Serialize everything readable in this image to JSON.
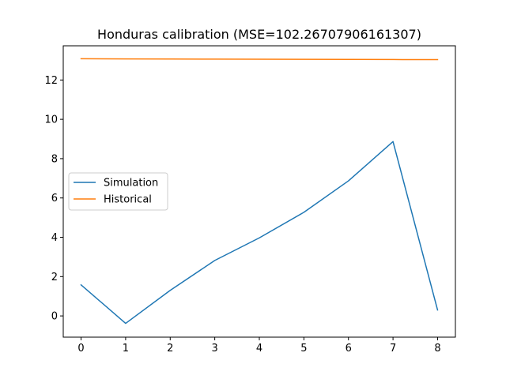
{
  "chart_data": {
    "type": "line",
    "title": "Honduras calibration (MSE=102.26707906161307)",
    "xlabel": "",
    "ylabel": "",
    "x": [
      0,
      1,
      2,
      3,
      4,
      5,
      6,
      7,
      8
    ],
    "xticks": [
      "0",
      "1",
      "2",
      "3",
      "4",
      "5",
      "6",
      "7",
      "8"
    ],
    "yticks": [
      "0",
      "2",
      "4",
      "6",
      "8",
      "10",
      "12"
    ],
    "xlim": [
      -0.4,
      8.4
    ],
    "ylim": [
      -1.08,
      13.74
    ],
    "grid": false,
    "legend_position": "center-left",
    "series": [
      {
        "name": "Simulation",
        "color": "#1f77b4",
        "values": [
          1.58,
          -0.38,
          1.3,
          2.82,
          3.97,
          5.27,
          6.87,
          8.87,
          0.3
        ]
      },
      {
        "name": "Historical",
        "color": "#ff7f0e",
        "values": [
          13.08,
          13.07,
          13.065,
          13.06,
          13.055,
          13.05,
          13.045,
          13.04,
          13.035
        ]
      }
    ]
  }
}
